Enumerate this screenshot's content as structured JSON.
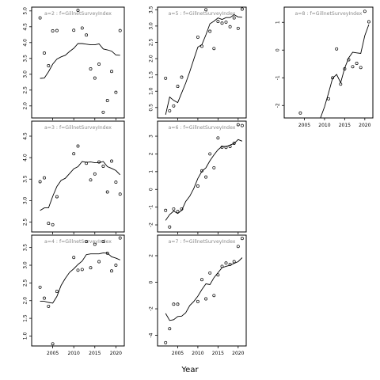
{
  "chart_data": {
    "type": "scatter",
    "xlabel": "Year",
    "panels": [
      {
        "title": "a=2 : f=GillnetSurveyIndex",
        "xlim": [
          2000,
          2022
        ],
        "ylim": [
          1.62,
          5.12
        ],
        "yticks": [
          2.0,
          2.5,
          3.0,
          3.5,
          4.0,
          4.5,
          5.0
        ],
        "xticks": [],
        "points": [
          [
            2002,
            4.78
          ],
          [
            2003,
            3.67
          ],
          [
            2004,
            3.27
          ],
          [
            2005,
            4.37
          ],
          [
            2006,
            4.38
          ],
          [
            2010,
            4.39
          ],
          [
            2011,
            5.02
          ],
          [
            2012,
            4.46
          ],
          [
            2013,
            4.24
          ],
          [
            2014,
            3.17
          ],
          [
            2015,
            2.88
          ],
          [
            2016,
            3.32
          ],
          [
            2017,
            1.8
          ],
          [
            2018,
            2.17
          ],
          [
            2019,
            3.09
          ],
          [
            2020,
            2.43
          ],
          [
            2021,
            4.38
          ]
        ],
        "fit": [
          [
            2002,
            2.87
          ],
          [
            2003,
            2.88
          ],
          [
            2004,
            3.08
          ],
          [
            2005,
            3.32
          ],
          [
            2006,
            3.48
          ],
          [
            2007,
            3.55
          ],
          [
            2008,
            3.6
          ],
          [
            2009,
            3.72
          ],
          [
            2010,
            3.82
          ],
          [
            2011,
            3.97
          ],
          [
            2012,
            3.97
          ],
          [
            2013,
            3.95
          ],
          [
            2014,
            3.93
          ],
          [
            2015,
            3.93
          ],
          [
            2016,
            3.96
          ],
          [
            2017,
            3.8
          ],
          [
            2018,
            3.77
          ],
          [
            2019,
            3.73
          ],
          [
            2020,
            3.61
          ],
          [
            2021,
            3.6
          ]
        ]
      },
      {
        "title": "a=5 : f=GillnetSurveyIndex",
        "xlim": [
          2000,
          2022
        ],
        "ylim": [
          0.18,
          3.58
        ],
        "yticks": [
          0.5,
          1.0,
          1.5,
          2.0,
          2.5,
          3.0,
          3.5
        ],
        "xticks": [],
        "points": [
          [
            2002,
            1.4
          ],
          [
            2003,
            0.4
          ],
          [
            2004,
            0.55
          ],
          [
            2005,
            1.15
          ],
          [
            2006,
            1.43
          ],
          [
            2010,
            2.66
          ],
          [
            2011,
            2.38
          ],
          [
            2012,
            3.5
          ],
          [
            2013,
            2.84
          ],
          [
            2014,
            2.31
          ],
          [
            2015,
            3.14
          ],
          [
            2016,
            3.09
          ],
          [
            2017,
            3.12
          ],
          [
            2018,
            2.98
          ],
          [
            2019,
            3.25
          ],
          [
            2020,
            2.93
          ],
          [
            2021,
            3.52
          ]
        ],
        "fit": [
          [
            2002,
            0.28
          ],
          [
            2003,
            0.82
          ],
          [
            2004,
            0.72
          ],
          [
            2005,
            0.65
          ],
          [
            2006,
            0.95
          ],
          [
            2007,
            1.25
          ],
          [
            2008,
            1.6
          ],
          [
            2009,
            1.98
          ],
          [
            2010,
            2.35
          ],
          [
            2011,
            2.43
          ],
          [
            2012,
            2.73
          ],
          [
            2013,
            3.07
          ],
          [
            2014,
            3.15
          ],
          [
            2015,
            3.25
          ],
          [
            2016,
            3.2
          ],
          [
            2017,
            3.26
          ],
          [
            2018,
            3.26
          ],
          [
            2019,
            3.35
          ],
          [
            2020,
            3.28
          ],
          [
            2021,
            3.27
          ]
        ]
      },
      {
        "title": "a=8 : f=GillnetSurveyIndex",
        "xlim": [
          2000,
          2022
        ],
        "ylim": [
          -2.45,
          1.55
        ],
        "yticks": [
          -2,
          -1,
          0,
          1
        ],
        "xticks": [
          2005,
          2010,
          2015,
          2020
        ],
        "points": [
          [
            2004,
            -2.27
          ],
          [
            2011,
            -1.76
          ],
          [
            2012,
            -1.0
          ],
          [
            2013,
            0.04
          ],
          [
            2014,
            -1.23
          ],
          [
            2015,
            -0.68
          ],
          [
            2016,
            -0.35
          ],
          [
            2017,
            -0.6
          ],
          [
            2018,
            -0.48
          ],
          [
            2019,
            -0.63
          ],
          [
            2020,
            1.4
          ],
          [
            2021,
            1.02
          ]
        ],
        "fit": [
          [
            2009,
            -2.45
          ],
          [
            2010,
            -2.05
          ],
          [
            2011,
            -1.55
          ],
          [
            2012,
            -1.02
          ],
          [
            2013,
            -0.88
          ],
          [
            2014,
            -1.18
          ],
          [
            2015,
            -0.65
          ],
          [
            2016,
            -0.28
          ],
          [
            2017,
            -0.08
          ],
          [
            2018,
            -0.1
          ],
          [
            2019,
            -0.12
          ],
          [
            2020,
            0.52
          ],
          [
            2021,
            0.92
          ]
        ]
      },
      {
        "title": "a=3 : f=GillnetSurveyIndex",
        "xlim": [
          2000,
          2022
        ],
        "ylim": [
          2.27,
          4.85
        ],
        "yticks": [
          2.5,
          3.0,
          3.5,
          4.0,
          4.5
        ],
        "xticks": [],
        "points": [
          [
            2002,
            3.44
          ],
          [
            2003,
            3.53
          ],
          [
            2004,
            2.47
          ],
          [
            2005,
            2.44
          ],
          [
            2006,
            3.09
          ],
          [
            2010,
            4.09
          ],
          [
            2011,
            4.27
          ],
          [
            2013,
            3.87
          ],
          [
            2014,
            3.48
          ],
          [
            2015,
            3.62
          ],
          [
            2016,
            3.9
          ],
          [
            2017,
            3.8
          ],
          [
            2018,
            3.2
          ],
          [
            2019,
            3.92
          ],
          [
            2020,
            3.43
          ],
          [
            2021,
            3.15
          ]
        ],
        "fit": [
          [
            2002,
            2.77
          ],
          [
            2003,
            2.83
          ],
          [
            2004,
            2.83
          ],
          [
            2005,
            3.1
          ],
          [
            2006,
            3.33
          ],
          [
            2007,
            3.47
          ],
          [
            2008,
            3.52
          ],
          [
            2009,
            3.63
          ],
          [
            2010,
            3.74
          ],
          [
            2011,
            3.79
          ],
          [
            2012,
            3.91
          ],
          [
            2013,
            3.89
          ],
          [
            2014,
            3.9
          ],
          [
            2015,
            3.88
          ],
          [
            2016,
            3.88
          ],
          [
            2017,
            3.91
          ],
          [
            2018,
            3.79
          ],
          [
            2019,
            3.75
          ],
          [
            2020,
            3.7
          ],
          [
            2021,
            3.6
          ]
        ]
      },
      {
        "title": "a=6 : f=GillnetSurveyIndex",
        "xlim": [
          2000,
          2022
        ],
        "ylim": [
          -2.4,
          3.85
        ],
        "yticks": [
          -2,
          -1,
          0,
          1,
          2,
          3
        ],
        "xticks": [],
        "points": [
          [
            2002,
            -1.18
          ],
          [
            2003,
            -2.12
          ],
          [
            2004,
            -1.1
          ],
          [
            2005,
            -1.25
          ],
          [
            2006,
            -1.1
          ],
          [
            2010,
            0.19
          ],
          [
            2011,
            1.05
          ],
          [
            2012,
            0.7
          ],
          [
            2013,
            2.0
          ],
          [
            2014,
            1.22
          ],
          [
            2015,
            2.9
          ],
          [
            2016,
            2.38
          ],
          [
            2017,
            2.37
          ],
          [
            2018,
            2.42
          ],
          [
            2019,
            2.6
          ],
          [
            2020,
            3.65
          ],
          [
            2021,
            3.6
          ]
        ],
        "fit": [
          [
            2002,
            -1.75
          ],
          [
            2003,
            -1.42
          ],
          [
            2004,
            -1.22
          ],
          [
            2005,
            -1.36
          ],
          [
            2006,
            -1.18
          ],
          [
            2007,
            -0.68
          ],
          [
            2008,
            -0.38
          ],
          [
            2009,
            0.05
          ],
          [
            2010,
            0.62
          ],
          [
            2011,
            1.02
          ],
          [
            2012,
            1.22
          ],
          [
            2013,
            1.62
          ],
          [
            2014,
            1.95
          ],
          [
            2015,
            2.24
          ],
          [
            2016,
            2.42
          ],
          [
            2017,
            2.42
          ],
          [
            2018,
            2.5
          ],
          [
            2019,
            2.59
          ],
          [
            2020,
            2.81
          ],
          [
            2021,
            2.72
          ]
        ]
      },
      {
        "title": "a=4 : f=GillnetSurveyIndex",
        "xlim": [
          2000,
          2022
        ],
        "ylim": [
          0.72,
          3.85
        ],
        "yticks": [
          1.0,
          1.5,
          2.0,
          2.5,
          3.0,
          3.5
        ],
        "xticks": [
          2005,
          2010,
          2015,
          2020
        ],
        "points": [
          [
            2002,
            2.38
          ],
          [
            2003,
            2.07
          ],
          [
            2004,
            1.84
          ],
          [
            2005,
            0.78
          ],
          [
            2006,
            2.26
          ],
          [
            2010,
            3.22
          ],
          [
            2011,
            2.86
          ],
          [
            2012,
            2.88
          ],
          [
            2013,
            3.67
          ],
          [
            2014,
            2.93
          ],
          [
            2015,
            3.59
          ],
          [
            2016,
            3.1
          ],
          [
            2017,
            3.67
          ],
          [
            2018,
            3.34
          ],
          [
            2019,
            2.84
          ],
          [
            2020,
            3.0
          ],
          [
            2021,
            3.77
          ]
        ],
        "fit": [
          [
            2002,
            1.98
          ],
          [
            2003,
            1.98
          ],
          [
            2004,
            1.95
          ],
          [
            2005,
            1.93
          ],
          [
            2006,
            2.12
          ],
          [
            2007,
            2.43
          ],
          [
            2008,
            2.63
          ],
          [
            2009,
            2.8
          ],
          [
            2010,
            2.9
          ],
          [
            2011,
            3.02
          ],
          [
            2012,
            3.12
          ],
          [
            2013,
            3.3
          ],
          [
            2014,
            3.32
          ],
          [
            2015,
            3.32
          ],
          [
            2016,
            3.32
          ],
          [
            2017,
            3.35
          ],
          [
            2018,
            3.34
          ],
          [
            2019,
            3.24
          ],
          [
            2020,
            3.2
          ],
          [
            2021,
            3.15
          ]
        ]
      },
      {
        "title": "a=7 : f=GillnetSurveyIndex",
        "xlim": [
          2000,
          2022
        ],
        "ylim": [
          -4.8,
          3.55
        ],
        "yticks": [
          -4,
          -2,
          0,
          2
        ],
        "xticks": [
          2005,
          2010,
          2015,
          2020
        ],
        "points": [
          [
            2002,
            -4.55
          ],
          [
            2003,
            -3.5
          ],
          [
            2004,
            -1.65
          ],
          [
            2005,
            -1.65
          ],
          [
            2010,
            -1.45
          ],
          [
            2011,
            0.2
          ],
          [
            2012,
            -1.25
          ],
          [
            2013,
            0.7
          ],
          [
            2014,
            -1.0
          ],
          [
            2015,
            0.55
          ],
          [
            2016,
            1.2
          ],
          [
            2017,
            1.45
          ],
          [
            2018,
            1.35
          ],
          [
            2019,
            1.55
          ],
          [
            2020,
            2.7
          ],
          [
            2021,
            3.3
          ]
        ],
        "fit": [
          [
            2002,
            -2.35
          ],
          [
            2003,
            -2.88
          ],
          [
            2004,
            -2.82
          ],
          [
            2005,
            -2.58
          ],
          [
            2006,
            -2.55
          ],
          [
            2007,
            -2.3
          ],
          [
            2008,
            -1.75
          ],
          [
            2009,
            -1.45
          ],
          [
            2010,
            -1.05
          ],
          [
            2011,
            -0.55
          ],
          [
            2012,
            -0.12
          ],
          [
            2013,
            -0.18
          ],
          [
            2014,
            0.35
          ],
          [
            2015,
            0.72
          ],
          [
            2016,
            1.1
          ],
          [
            2017,
            1.2
          ],
          [
            2018,
            1.28
          ],
          [
            2019,
            1.42
          ],
          [
            2020,
            1.55
          ],
          [
            2021,
            1.85
          ]
        ]
      }
    ]
  }
}
